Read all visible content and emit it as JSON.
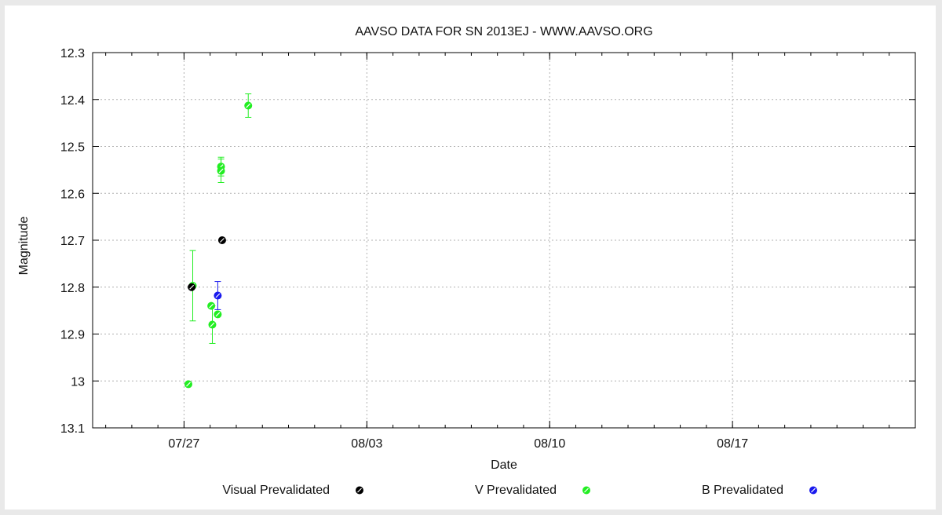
{
  "chart_data": {
    "type": "scatter",
    "title": "AAVSO DATA FOR SN 2013EJ - WWW.AAVSO.ORG",
    "xlabel": "Date",
    "ylabel": "Magnitude",
    "y_inverted": true,
    "ylim": [
      13.1,
      12.3
    ],
    "yticks": [
      12.3,
      12.4,
      12.5,
      12.6,
      12.7,
      12.8,
      12.9,
      13,
      13.1
    ],
    "yticklabels": [
      "12.3",
      "12.4",
      "12.5",
      "12.6",
      "12.7",
      "12.8",
      "12.9",
      "13",
      "13.1"
    ],
    "xlim": [
      "07/23 12:00",
      "08/24 00:00"
    ],
    "xticks": [
      "07/27",
      "08/03",
      "08/10",
      "08/17"
    ],
    "xticklabels": [
      "07/27",
      "08/03",
      "08/10",
      "08/17"
    ],
    "x_minor_ticks_days": 1,
    "grid": true,
    "legend_position": "bottom",
    "series": [
      {
        "name": "Visual Prevalidated",
        "color": "#000000",
        "points": [
          {
            "x": "07/27 07:00",
            "y": 12.8
          },
          {
            "x": "07/28 11:00",
            "y": 12.7
          }
        ]
      },
      {
        "name": "V Prevalidated",
        "color": "#22ee22",
        "points": [
          {
            "x": "07/27 04:00",
            "y": 13.007,
            "err": null
          },
          {
            "x": "07/27 08:00",
            "y": 12.797,
            "err": 0.075
          },
          {
            "x": "07/28 01:00",
            "y": 12.84,
            "err": null
          },
          {
            "x": "07/28 02:00",
            "y": 12.88,
            "err": 0.04
          },
          {
            "x": "07/28 07:00",
            "y": 12.858,
            "err": null
          },
          {
            "x": "07/28 10:00",
            "y": 12.543,
            "err": 0.02
          },
          {
            "x": "07/28 10:00",
            "y": 12.552,
            "err": 0.025
          },
          {
            "x": "07/29 11:00",
            "y": 12.413,
            "err": 0.025
          }
        ]
      },
      {
        "name": "B Prevalidated",
        "color": "#1a1aee",
        "points": [
          {
            "x": "07/28 07:00",
            "y": 12.818,
            "err": 0.03
          }
        ]
      }
    ]
  }
}
